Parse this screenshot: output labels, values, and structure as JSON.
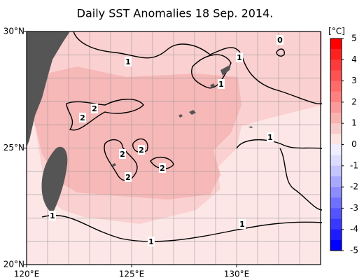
{
  "map": {
    "title": "Daily SST Anomalies 18 Sep. 2014.",
    "xlim": [
      120,
      134
    ],
    "ylim": [
      20,
      30
    ],
    "xticks": [
      {
        "value": 120,
        "label": "120°E"
      },
      {
        "value": 125,
        "label": "125°E"
      },
      {
        "value": 130,
        "label": "130°E"
      }
    ],
    "yticks": [
      {
        "value": 30,
        "label": "30°N"
      },
      {
        "value": 25,
        "label": "25°N"
      },
      {
        "value": 20,
        "label": "20°N"
      }
    ],
    "contour_labels": [
      1,
      1,
      1,
      0,
      2,
      2,
      2,
      2,
      2,
      2,
      1,
      1,
      1,
      1
    ]
  },
  "colorbar": {
    "unit": "[°C]",
    "ticks": [
      5,
      4,
      3,
      2,
      1,
      0,
      -1,
      -2,
      -3,
      -4,
      -5
    ],
    "colors": [
      "#ff0000",
      "#ff2020",
      "#ff3a3a",
      "#ff5252",
      "#ff6a6a",
      "#ff8080",
      "#fb9a9a",
      "#f8b2b2",
      "#f9cccc",
      "#fce4e4",
      "#eeeeff",
      "#dcdcff",
      "#c4c4ff",
      "#a8a8ff",
      "#8c8cff",
      "#7070ff",
      "#5454ff",
      "#3838ff",
      "#1c1cff",
      "#0000ff"
    ]
  }
}
